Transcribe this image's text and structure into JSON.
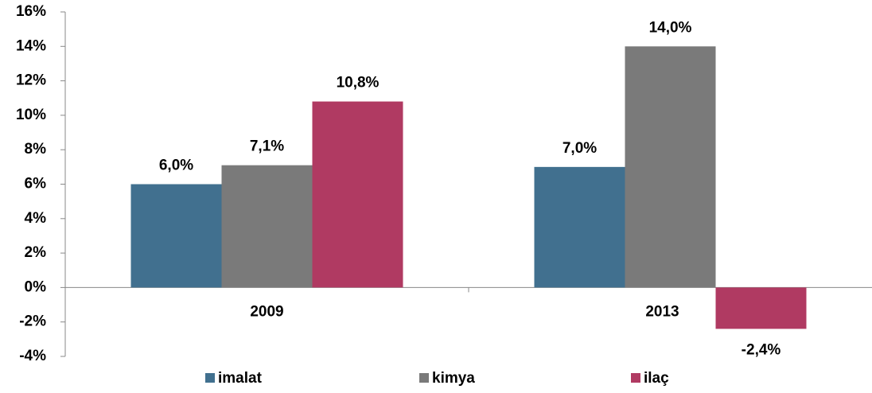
{
  "chart_data": {
    "type": "bar",
    "categories": [
      "2009",
      "2013"
    ],
    "series": [
      {
        "name": "imalat",
        "color": "#41708f",
        "values": [
          6.0,
          7.0
        ],
        "value_labels": [
          "6,0%",
          "7,0%"
        ]
      },
      {
        "name": "kimya",
        "color": "#7a7a7a",
        "values": [
          7.1,
          14.0
        ],
        "value_labels": [
          "7,1%",
          "14,0%"
        ]
      },
      {
        "name": "ilaç",
        "color": "#b03a62",
        "values": [
          10.8,
          -2.4
        ],
        "value_labels": [
          "10,8%",
          "-2,4%"
        ]
      }
    ],
    "ylim": [
      -4,
      16
    ],
    "yticks": [
      {
        "value": -4,
        "label": "-4%"
      },
      {
        "value": -2,
        "label": "-2%"
      },
      {
        "value": 0,
        "label": "0%"
      },
      {
        "value": 2,
        "label": "2%"
      },
      {
        "value": 4,
        "label": "4%"
      },
      {
        "value": 6,
        "label": "6%"
      },
      {
        "value": 8,
        "label": "8%"
      },
      {
        "value": 10,
        "label": "10%"
      },
      {
        "value": 12,
        "label": "12%"
      },
      {
        "value": 14,
        "label": "14%"
      },
      {
        "value": 16,
        "label": "16%"
      }
    ],
    "grid": false,
    "legend": "bottom"
  }
}
